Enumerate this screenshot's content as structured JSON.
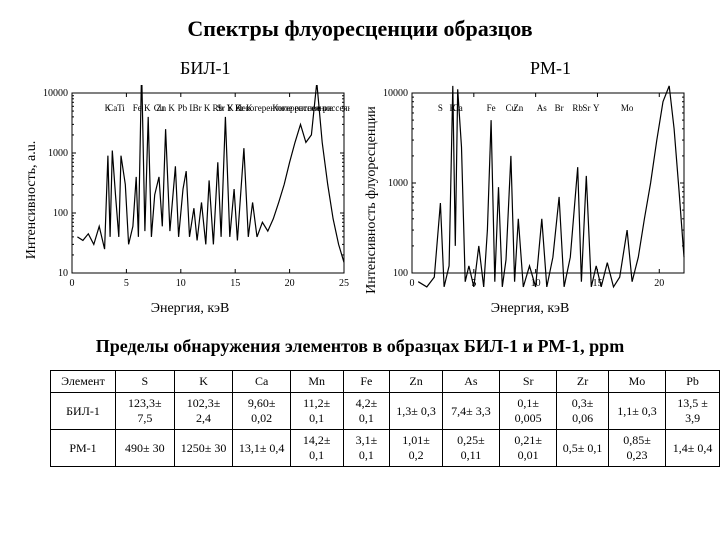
{
  "title": "Спектры флуоресценции образцов",
  "left_label": "БИЛ-1",
  "right_label": "РМ-1",
  "chart_left": {
    "type": "line",
    "ylabel": "Интенсивность, a.u.",
    "xlabel": "Энергия, кэВ",
    "xlim": [
      0,
      25
    ],
    "xtick_step": 5,
    "ylog": true,
    "yticks": [
      10,
      100,
      1000,
      10000
    ],
    "line_color": "#000000",
    "line_width": 1.2,
    "background_color": "#ffffff",
    "axis_color": "#000000",
    "label_fontsize": 14,
    "tick_fontsize": 10,
    "peak_fontsize": 9,
    "peak_labels": [
      {
        "text": "K",
        "x": 3.3
      },
      {
        "text": "Ca",
        "x": 3.7
      },
      {
        "text": "Ti",
        "x": 4.5
      },
      {
        "text": "Fe K",
        "x": 6.4
      },
      {
        "text": "Cu",
        "x": 8.0
      },
      {
        "text": "Zn K",
        "x": 8.6
      },
      {
        "text": "Pb L",
        "x": 10.5
      },
      {
        "text": "Br K",
        "x": 11.9
      },
      {
        "text": "Sr K",
        "x": 14.1
      },
      {
        "text": "Rb",
        "x": 13.4
      },
      {
        "text": "Y K",
        "x": 14.9
      },
      {
        "text": "Zr K",
        "x": 15.8
      },
      {
        "text": "Некогерентное рассеяние",
        "x": 19.5
      },
      {
        "text": "Когерентное рассеяние",
        "x": 22.5
      }
    ],
    "data": [
      {
        "x": 0.5,
        "y": 40
      },
      {
        "x": 1.0,
        "y": 35
      },
      {
        "x": 1.5,
        "y": 45
      },
      {
        "x": 2.0,
        "y": 30
      },
      {
        "x": 2.5,
        "y": 60
      },
      {
        "x": 3.0,
        "y": 25
      },
      {
        "x": 3.3,
        "y": 900
      },
      {
        "x": 3.5,
        "y": 40
      },
      {
        "x": 3.7,
        "y": 1100
      },
      {
        "x": 4.0,
        "y": 200
      },
      {
        "x": 4.3,
        "y": 40
      },
      {
        "x": 4.5,
        "y": 900
      },
      {
        "x": 4.9,
        "y": 300
      },
      {
        "x": 5.2,
        "y": 30
      },
      {
        "x": 5.6,
        "y": 60
      },
      {
        "x": 5.9,
        "y": 400
      },
      {
        "x": 6.1,
        "y": 40
      },
      {
        "x": 6.4,
        "y": 25000
      },
      {
        "x": 6.7,
        "y": 50
      },
      {
        "x": 7.0,
        "y": 4000
      },
      {
        "x": 7.3,
        "y": 40
      },
      {
        "x": 7.6,
        "y": 200
      },
      {
        "x": 8.0,
        "y": 400
      },
      {
        "x": 8.3,
        "y": 60
      },
      {
        "x": 8.6,
        "y": 2500
      },
      {
        "x": 9.0,
        "y": 50
      },
      {
        "x": 9.5,
        "y": 600
      },
      {
        "x": 9.8,
        "y": 40
      },
      {
        "x": 10.2,
        "y": 250
      },
      {
        "x": 10.5,
        "y": 500
      },
      {
        "x": 10.8,
        "y": 40
      },
      {
        "x": 11.2,
        "y": 120
      },
      {
        "x": 11.5,
        "y": 35
      },
      {
        "x": 11.9,
        "y": 150
      },
      {
        "x": 12.3,
        "y": 30
      },
      {
        "x": 12.6,
        "y": 350
      },
      {
        "x": 13.0,
        "y": 30
      },
      {
        "x": 13.4,
        "y": 700
      },
      {
        "x": 13.7,
        "y": 40
      },
      {
        "x": 14.1,
        "y": 4000
      },
      {
        "x": 14.5,
        "y": 40
      },
      {
        "x": 14.9,
        "y": 250
      },
      {
        "x": 15.2,
        "y": 35
      },
      {
        "x": 15.8,
        "y": 1200
      },
      {
        "x": 16.2,
        "y": 40
      },
      {
        "x": 16.6,
        "y": 150
      },
      {
        "x": 17.0,
        "y": 40
      },
      {
        "x": 17.5,
        "y": 70
      },
      {
        "x": 18.0,
        "y": 50
      },
      {
        "x": 18.5,
        "y": 80
      },
      {
        "x": 19.0,
        "y": 150
      },
      {
        "x": 19.5,
        "y": 300
      },
      {
        "x": 20.0,
        "y": 700
      },
      {
        "x": 20.5,
        "y": 1500
      },
      {
        "x": 21.0,
        "y": 3000
      },
      {
        "x": 21.5,
        "y": 1500
      },
      {
        "x": 22.0,
        "y": 2000
      },
      {
        "x": 22.5,
        "y": 15000
      },
      {
        "x": 23.0,
        "y": 1500
      },
      {
        "x": 23.5,
        "y": 300
      },
      {
        "x": 24.0,
        "y": 80
      },
      {
        "x": 24.5,
        "y": 30
      },
      {
        "x": 25.0,
        "y": 15
      }
    ]
  },
  "chart_right": {
    "type": "line",
    "ylabel": "Интенсивность флуоресценции",
    "xlabel": "Энергия, кэВ",
    "xlim": [
      0,
      22
    ],
    "xtick_step": 5,
    "ylog": true,
    "yticks": [
      100,
      1000,
      10000
    ],
    "line_color": "#000000",
    "line_width": 1.2,
    "background_color": "#ffffff",
    "axis_color": "#000000",
    "label_fontsize": 14,
    "tick_fontsize": 10,
    "peak_fontsize": 9,
    "peak_labels": [
      {
        "text": "S",
        "x": 2.3
      },
      {
        "text": "K",
        "x": 3.3
      },
      {
        "text": "Ca",
        "x": 3.7
      },
      {
        "text": "Fe",
        "x": 6.4
      },
      {
        "text": "Cu",
        "x": 8.0
      },
      {
        "text": "Zn",
        "x": 8.6
      },
      {
        "text": "As",
        "x": 10.5
      },
      {
        "text": "Br",
        "x": 11.9
      },
      {
        "text": "Rb",
        "x": 13.4
      },
      {
        "text": "Sr",
        "x": 14.1
      },
      {
        "text": "Y",
        "x": 14.9
      },
      {
        "text": "Mo",
        "x": 17.4
      }
    ],
    "data": [
      {
        "x": 0.5,
        "y": 80
      },
      {
        "x": 1.2,
        "y": 70
      },
      {
        "x": 1.8,
        "y": 90
      },
      {
        "x": 2.3,
        "y": 600
      },
      {
        "x": 2.6,
        "y": 70
      },
      {
        "x": 3.0,
        "y": 120
      },
      {
        "x": 3.3,
        "y": 12000
      },
      {
        "x": 3.5,
        "y": 200
      },
      {
        "x": 3.7,
        "y": 11000
      },
      {
        "x": 4.0,
        "y": 2500
      },
      {
        "x": 4.3,
        "y": 80
      },
      {
        "x": 4.6,
        "y": 120
      },
      {
        "x": 5.0,
        "y": 70
      },
      {
        "x": 5.4,
        "y": 200
      },
      {
        "x": 5.8,
        "y": 70
      },
      {
        "x": 6.1,
        "y": 300
      },
      {
        "x": 6.4,
        "y": 5000
      },
      {
        "x": 6.7,
        "y": 80
      },
      {
        "x": 7.0,
        "y": 900
      },
      {
        "x": 7.3,
        "y": 70
      },
      {
        "x": 7.6,
        "y": 140
      },
      {
        "x": 8.0,
        "y": 2000
      },
      {
        "x": 8.3,
        "y": 80
      },
      {
        "x": 8.6,
        "y": 400
      },
      {
        "x": 9.0,
        "y": 70
      },
      {
        "x": 9.5,
        "y": 120
      },
      {
        "x": 10.0,
        "y": 70
      },
      {
        "x": 10.5,
        "y": 400
      },
      {
        "x": 10.9,
        "y": 70
      },
      {
        "x": 11.4,
        "y": 150
      },
      {
        "x": 11.9,
        "y": 700
      },
      {
        "x": 12.3,
        "y": 70
      },
      {
        "x": 12.8,
        "y": 150
      },
      {
        "x": 13.4,
        "y": 1500
      },
      {
        "x": 13.7,
        "y": 80
      },
      {
        "x": 14.1,
        "y": 1200
      },
      {
        "x": 14.5,
        "y": 70
      },
      {
        "x": 14.9,
        "y": 120
      },
      {
        "x": 15.3,
        "y": 70
      },
      {
        "x": 15.8,
        "y": 130
      },
      {
        "x": 16.3,
        "y": 70
      },
      {
        "x": 16.8,
        "y": 90
      },
      {
        "x": 17.4,
        "y": 300
      },
      {
        "x": 17.8,
        "y": 80
      },
      {
        "x": 18.3,
        "y": 150
      },
      {
        "x": 18.8,
        "y": 400
      },
      {
        "x": 19.3,
        "y": 1000
      },
      {
        "x": 19.8,
        "y": 3000
      },
      {
        "x": 20.3,
        "y": 8000
      },
      {
        "x": 20.8,
        "y": 12000
      },
      {
        "x": 21.2,
        "y": 4000
      },
      {
        "x": 21.6,
        "y": 800
      },
      {
        "x": 22.0,
        "y": 150
      }
    ]
  },
  "table_title": "Пределы обнаружения элементов в образцах БИЛ-1 и РМ-1, ppm",
  "table": {
    "columns": [
      "Элемент",
      "S",
      "K",
      "Ca",
      "Mn",
      "Fe",
      "Zn",
      "As",
      "Sr",
      "Zr",
      "Mo",
      "Pb"
    ],
    "rows": [
      {
        "label": "БИЛ-1",
        "cells": [
          "123,3± 7,5",
          "102,3± 2,4",
          "9,60± 0,02",
          "11,2± 0,1",
          "4,2± 0,1",
          "1,3± 0,3",
          "7,4± 3,3",
          "0,1± 0,005",
          "0,3± 0,06",
          "1,1± 0,3",
          "13,5 ± 3,9"
        ]
      },
      {
        "label": "РМ-1",
        "cells": [
          "490± 30",
          "1250± 30",
          "13,1± 0,4",
          "14,2± 0,1",
          "3,1± 0,1",
          "1,01± 0,2",
          "0,25± 0,11",
          "0,21± 0,01",
          "0,5± 0,1",
          "0,85± 0,23",
          "1,4± 0,4"
        ]
      }
    ]
  }
}
